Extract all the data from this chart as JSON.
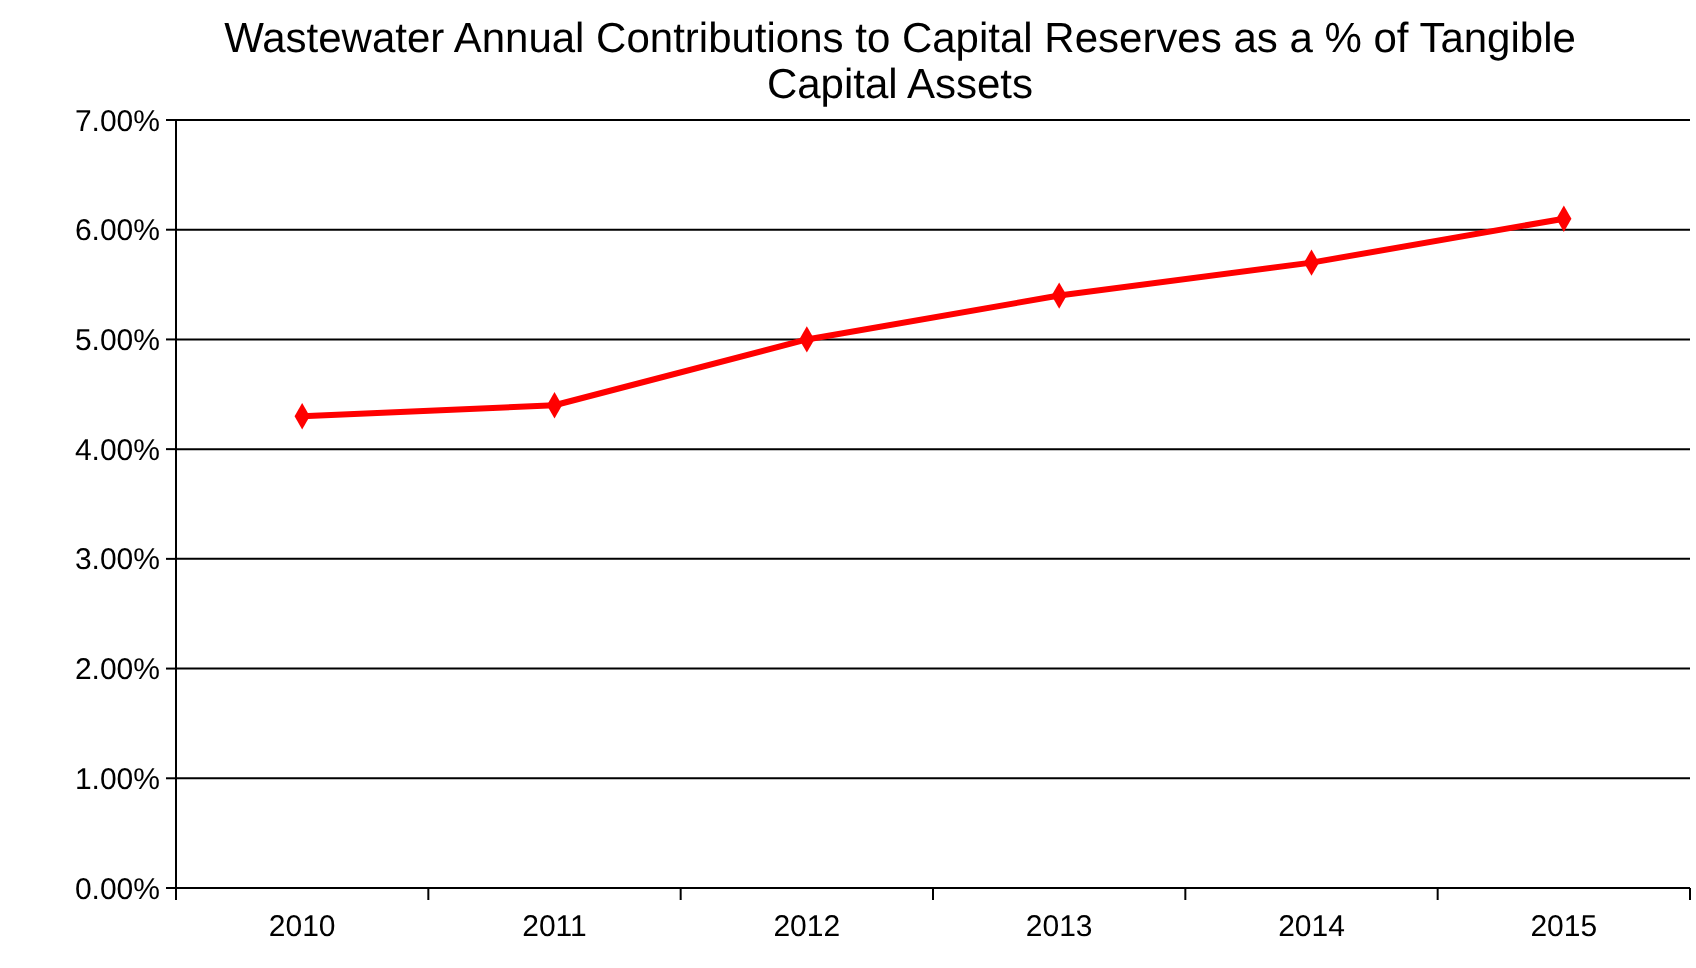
{
  "chart_data": {
    "type": "line",
    "title": "Wastewater Annual Contributions to Capital Reserves as a % of Tangible Capital Assets",
    "categories": [
      "2010",
      "2011",
      "2012",
      "2013",
      "2014",
      "2015"
    ],
    "series": [
      {
        "color": "#ff0000",
        "values": [
          4.3,
          4.4,
          5.0,
          5.4,
          5.7,
          6.1
        ]
      }
    ],
    "ylim": [
      0,
      7
    ],
    "yticks": [
      {
        "value": 0,
        "label": "0.00%"
      },
      {
        "value": 1,
        "label": "1.00%"
      },
      {
        "value": 2,
        "label": "2.00%"
      },
      {
        "value": 3,
        "label": "3.00%"
      },
      {
        "value": 4,
        "label": "4.00%"
      },
      {
        "value": 5,
        "label": "5.00%"
      },
      {
        "value": 6,
        "label": "6.00%"
      },
      {
        "value": 7,
        "label": "7.00%"
      }
    ],
    "grid": "y",
    "marker": "diamond",
    "line_style": "solid"
  }
}
